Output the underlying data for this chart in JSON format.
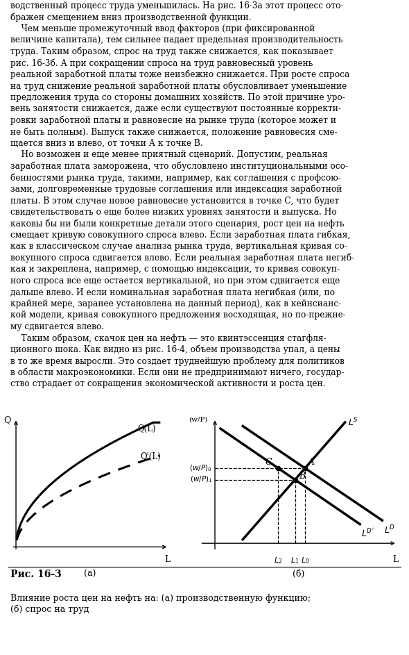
{
  "text_block": [
    "водственный процесс труда уменьшилась. На рис. 16-3а этот процесс ото-",
    "бражен смещением вниз производственной функции.",
    "    Чем меньше промежуточный ввод факторов (при фиксированной",
    "величине капитала), тем сильнее падает предельная производительность",
    "труда. Таким образом, спрос на труд также снижается, как показывает",
    "рис. 16-3б. А при сокращении спроса на труд равновесный уровень",
    "реальной заработной платы тоже неизбежно снижается. При росте спроса",
    "на труд снижение реальной заработной платы обусловливает уменьшение",
    "предложения труда со стороны домашних хозяйств. По этой причине уро-",
    "вень занятости снижается, даже если существуют постоянные корректи-",
    "ровки заработной платы и равновесие на рынке труда (которое может и",
    "не быть полным). Выпуск также снижается, положение равновесия сме-",
    "щается вниз и влево, от точки А к точке В.",
    "    Но возможен и еще менее приятный сценарий. Допустим, реальная",
    "заработная плата заморожена, что обусловлено институциональными осо-",
    "бенностями рынка труда, такими, например, как соглашения с профсою-",
    "зами, долговременные трудовые соглашения или индексация заработной",
    "платы. В этом случае новое равновесие установится в точке С, что будет",
    "свидетельствовать о еще более низких уровнях занятости и выпуска. Но",
    "каковы бы ни были конкретные детали этого сценария, рост цен на нефть",
    "смещает кривую совокупного спроса влево. Если заработная плата гибкая,",
    "как в классическом случае анализа рынка труда, вертикальная кривая со-",
    "вокупного спроса сдвигается влево. Если реальная заработная плата негиб-",
    "кая и закреплена, например, с помощью индексации, то кривая совокуп-",
    "ного спроса все еще остается вертикальной, но при этом сдвигается еще",
    "дальше влево. И если номинальная заработная плата негибкая (или, по",
    "крайней мере, заранее установлена на данный период), как в кейнсианс-",
    "кой модели, кривая совокупного предложения восходящая, но по-прежне-",
    "му сдвигается влево.",
    "    Таким образом, скачок цен на нефть — это квинтэссенция стагфля-",
    "ционного шока. Как видно из рис. 16-4, объем производства упал, а цены",
    "в то же время выросли. Это создает труднейшую проблему для политиков",
    "в области макроэкономики. Если они не предпринимают ничего, государ-",
    "ство страдает от сокращения экономической активности и роста цен."
  ],
  "fig_caption_title": "Рис. 16-3",
  "fig_caption_text": "Влияние роста цен на нефть на: (а) производственную функцию;\n(б) спрос на труд",
  "panel_a_label": "(а)",
  "panel_b_label": "(б)",
  "background_color": "#ffffff",
  "text_color": "#000000"
}
